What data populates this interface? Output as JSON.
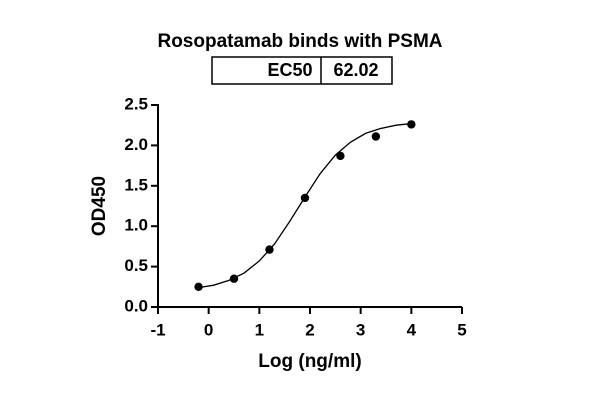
{
  "chart_data": {
    "type": "scatter",
    "title": "Rosopatamab binds with PSMA",
    "table": {
      "header": "EC50",
      "value": "62.02"
    },
    "x_label": "Log (ng/ml)",
    "y_label": "OD450",
    "x": [
      -0.2,
      0.5,
      1.2,
      1.9,
      2.6,
      3.3,
      4.0
    ],
    "values": [
      0.25,
      0.35,
      0.71,
      1.35,
      1.87,
      2.11,
      2.26
    ],
    "color": "#000000",
    "curve": {
      "x": [
        -0.2,
        0.1,
        0.4,
        0.7,
        1.0,
        1.3,
        1.6,
        1.9,
        2.2,
        2.5,
        2.8,
        3.1,
        3.4,
        3.7,
        4.0
      ],
      "values": [
        0.24,
        0.27,
        0.33,
        0.42,
        0.57,
        0.78,
        1.06,
        1.36,
        1.65,
        1.88,
        2.04,
        2.15,
        2.21,
        2.25,
        2.27
      ]
    },
    "xlim": [
      -1,
      5
    ],
    "xticks": [
      -1,
      0,
      1,
      2,
      3,
      4,
      5
    ],
    "ylim": [
      0,
      2.5
    ],
    "yticks": [
      {
        "value": 0,
        "label": "0.0"
      },
      0.5,
      {
        "value": 1,
        "label": "1.0"
      },
      1.5,
      {
        "value": 2,
        "label": "2.0"
      },
      2.5
    ],
    "grid": false
  }
}
